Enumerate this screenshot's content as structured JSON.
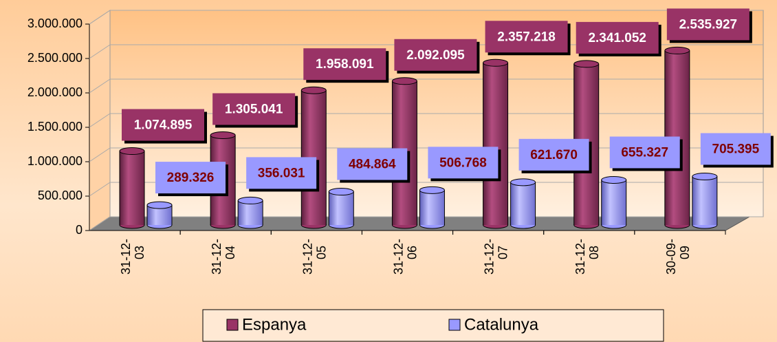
{
  "chart_data": {
    "type": "bar3d",
    "categories": [
      "31-12-03",
      "31-12-04",
      "31-12-05",
      "31-12-06",
      "31-12-07",
      "31-12-08",
      "30-09-09"
    ],
    "series": [
      {
        "name": "Espanya",
        "color": "#993366",
        "values": [
          1074895,
          1305041,
          1958091,
          2092095,
          2357218,
          2341052,
          2535927
        ],
        "value_labels": [
          "1.074.895",
          "1.305.041",
          "1.958.091",
          "2.092.095",
          "2.357.218",
          "2.341.052",
          "2.535.927"
        ]
      },
      {
        "name": "Catalunya",
        "color": "#9999ff",
        "values": [
          289326,
          356031,
          484864,
          506768,
          621670,
          655327,
          705395
        ],
        "value_labels": [
          "289.326",
          "356.031",
          "484.864",
          "506.768",
          "621.670",
          "655.327",
          "705.395"
        ]
      }
    ],
    "ylim": [
      0,
      3000000
    ],
    "yticks": [
      0,
      {
        "value": 500000,
        "label": "500.000"
      },
      {
        "value": 1000000,
        "label": "1.000.000"
      },
      {
        "value": 1500000,
        "label": "1.500.000"
      },
      {
        "value": 2000000,
        "label": "2.000.000"
      },
      {
        "value": 2500000,
        "label": "2.500.000"
      },
      {
        "value": 3000000,
        "label": "3.000.000"
      }
    ],
    "grid": true,
    "legend": "bottom"
  }
}
